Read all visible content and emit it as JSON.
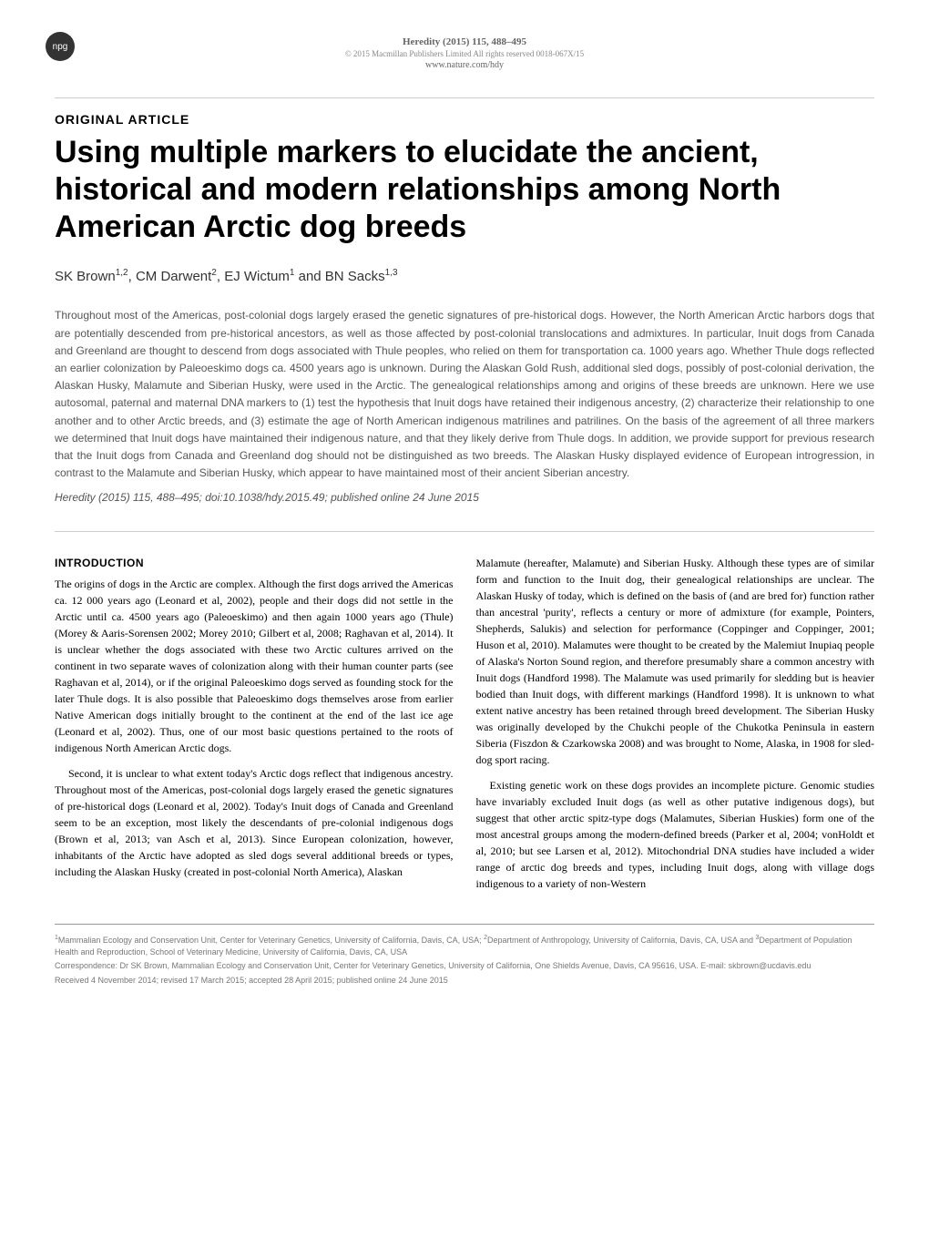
{
  "header": {
    "npg_badge": "npg",
    "journal_ref": "Heredity (2015) 115, 488–495",
    "copyright": "© 2015 Macmillan Publishers Limited All rights reserved 0018-067X/15",
    "website": "www.nature.com/hdy"
  },
  "article": {
    "type": "ORIGINAL ARTICLE",
    "title": "Using multiple markers to elucidate the ancient, historical and modern relationships among North American Arctic dog breeds",
    "authors": "SK Brown<sup>1,2</sup>, CM Darwent<sup>2</sup>, EJ Wictum<sup>1</sup> and BN Sacks<sup>1,3</sup>",
    "abstract": "Throughout most of the Americas, post-colonial dogs largely erased the genetic signatures of pre-historical dogs. However, the North American Arctic harbors dogs that are potentially descended from pre-historical ancestors, as well as those affected by post-colonial translocations and admixtures. In particular, Inuit dogs from Canada and Greenland are thought to descend from dogs associated with Thule peoples, who relied on them for transportation ca. 1000 years ago. Whether Thule dogs reflected an earlier colonization by Paleoeskimo dogs ca. 4500 years ago is unknown. During the Alaskan Gold Rush, additional sled dogs, possibly of post-colonial derivation, the Alaskan Husky, Malamute and Siberian Husky, were used in the Arctic. The genealogical relationships among and origins of these breeds are unknown. Here we use autosomal, paternal and maternal DNA markers to (1) test the hypothesis that Inuit dogs have retained their indigenous ancestry, (2) characterize their relationship to one another and to other Arctic breeds, and (3) estimate the age of North American indigenous matrilines and patrilines. On the basis of the agreement of all three markers we determined that Inuit dogs have maintained their indigenous nature, and that they likely derive from Thule dogs. In addition, we provide support for previous research that the Inuit dogs from Canada and Greenland dog should not be distinguished as two breeds. The Alaskan Husky displayed evidence of European introgression, in contrast to the Malamute and Siberian Husky, which appear to have maintained most of their ancient Siberian ancestry.",
    "citation": "Heredity (2015) 115, 488–495; doi:10.1038/hdy.2015.49; published online 24 June 2015"
  },
  "body": {
    "intro_heading": "INTRODUCTION",
    "left_column": {
      "p1": "The origins of dogs in the Arctic are complex. Although the first dogs arrived the Americas ca. 12 000 years ago (Leonard et al, 2002), people and their dogs did not settle in the Arctic until ca. 4500 years ago (Paleoeskimo) and then again 1000 years ago (Thule) (Morey & Aaris-Sorensen 2002; Morey 2010; Gilbert et al, 2008; Raghavan et al, 2014). It is unclear whether the dogs associated with these two Arctic cultures arrived on the continent in two separate waves of colonization along with their human counter parts (see Raghavan et al, 2014), or if the original Paleoeskimo dogs served as founding stock for the later Thule dogs. It is also possible that Paleoeskimo dogs themselves arose from earlier Native American dogs initially brought to the continent at the end of the last ice age (Leonard et al, 2002). Thus, one of our most basic questions pertained to the roots of indigenous North American Arctic dogs.",
      "p2": "Second, it is unclear to what extent today's Arctic dogs reflect that indigenous ancestry. Throughout most of the Americas, post-colonial dogs largely erased the genetic signatures of pre-historical dogs (Leonard et al, 2002). Today's Inuit dogs of Canada and Greenland seem to be an exception, most likely the descendants of pre-colonial indigenous dogs (Brown et al, 2013; van Asch et al, 2013). Since European colonization, however, inhabitants of the Arctic have adopted as sled dogs several additional breeds or types, including the Alaskan Husky (created in post-colonial North America), Alaskan"
    },
    "right_column": {
      "p1": "Malamute (hereafter, Malamute) and Siberian Husky. Although these types are of similar form and function to the Inuit dog, their genealogical relationships are unclear. The Alaskan Husky of today, which is defined on the basis of (and are bred for) function rather than ancestral 'purity', reflects a century or more of admixture (for example, Pointers, Shepherds, Salukis) and selection for performance (Coppinger and Coppinger, 2001; Huson et al, 2010). Malamutes were thought to be created by the Malemiut Inupiaq people of Alaska's Norton Sound region, and therefore presumably share a common ancestry with Inuit dogs (Handford 1998). The Malamute was used primarily for sledding but is heavier bodied than Inuit dogs, with different markings (Handford 1998). It is unknown to what extent native ancestry has been retained through breed development. The Siberian Husky was originally developed by the Chukchi people of the Chukotka Peninsula in eastern Siberia (Fiszdon & Czarkowska 2008) and was brought to Nome, Alaska, in 1908 for sled-dog sport racing.",
      "p2": "Existing genetic work on these dogs provides an incomplete picture. Genomic studies have invariably excluded Inuit dogs (as well as other putative indigenous dogs), but suggest that other arctic spitz-type dogs (Malamutes, Siberian Huskies) form one of the most ancestral groups among the modern-defined breeds (Parker et al, 2004; vonHoldt et al, 2010; but see Larsen et al, 2012). Mitochondrial DNA studies have included a wider range of arctic dog breeds and types, including Inuit dogs, along with village dogs indigenous to a variety of non-Western"
    }
  },
  "footer": {
    "affiliations": "<sup>1</sup>Mammalian Ecology and Conservation Unit, Center for Veterinary Genetics, University of California, Davis, CA, USA; <sup>2</sup>Department of Anthropology, University of California, Davis, CA, USA and <sup>3</sup>Department of Population Health and Reproduction, School of Veterinary Medicine, University of California, Davis, CA, USA",
    "correspondence": "Correspondence: Dr SK Brown, Mammalian Ecology and Conservation Unit, Center for Veterinary Genetics, University of California, One Shields Avenue, Davis, CA 95616, USA. E-mail: skbrown@ucdavis.edu",
    "dates": "Received 4 November 2014; revised 17 March 2015; accepted 28 April 2015; published online 24 June 2015"
  },
  "styling": {
    "background_color": "#ffffff",
    "text_color": "#000000",
    "secondary_text_color": "#555555",
    "footer_text_color": "#777777",
    "title_fontsize": 34,
    "body_fontsize": 12,
    "abstract_fontsize": 12,
    "footer_fontsize": 9
  }
}
